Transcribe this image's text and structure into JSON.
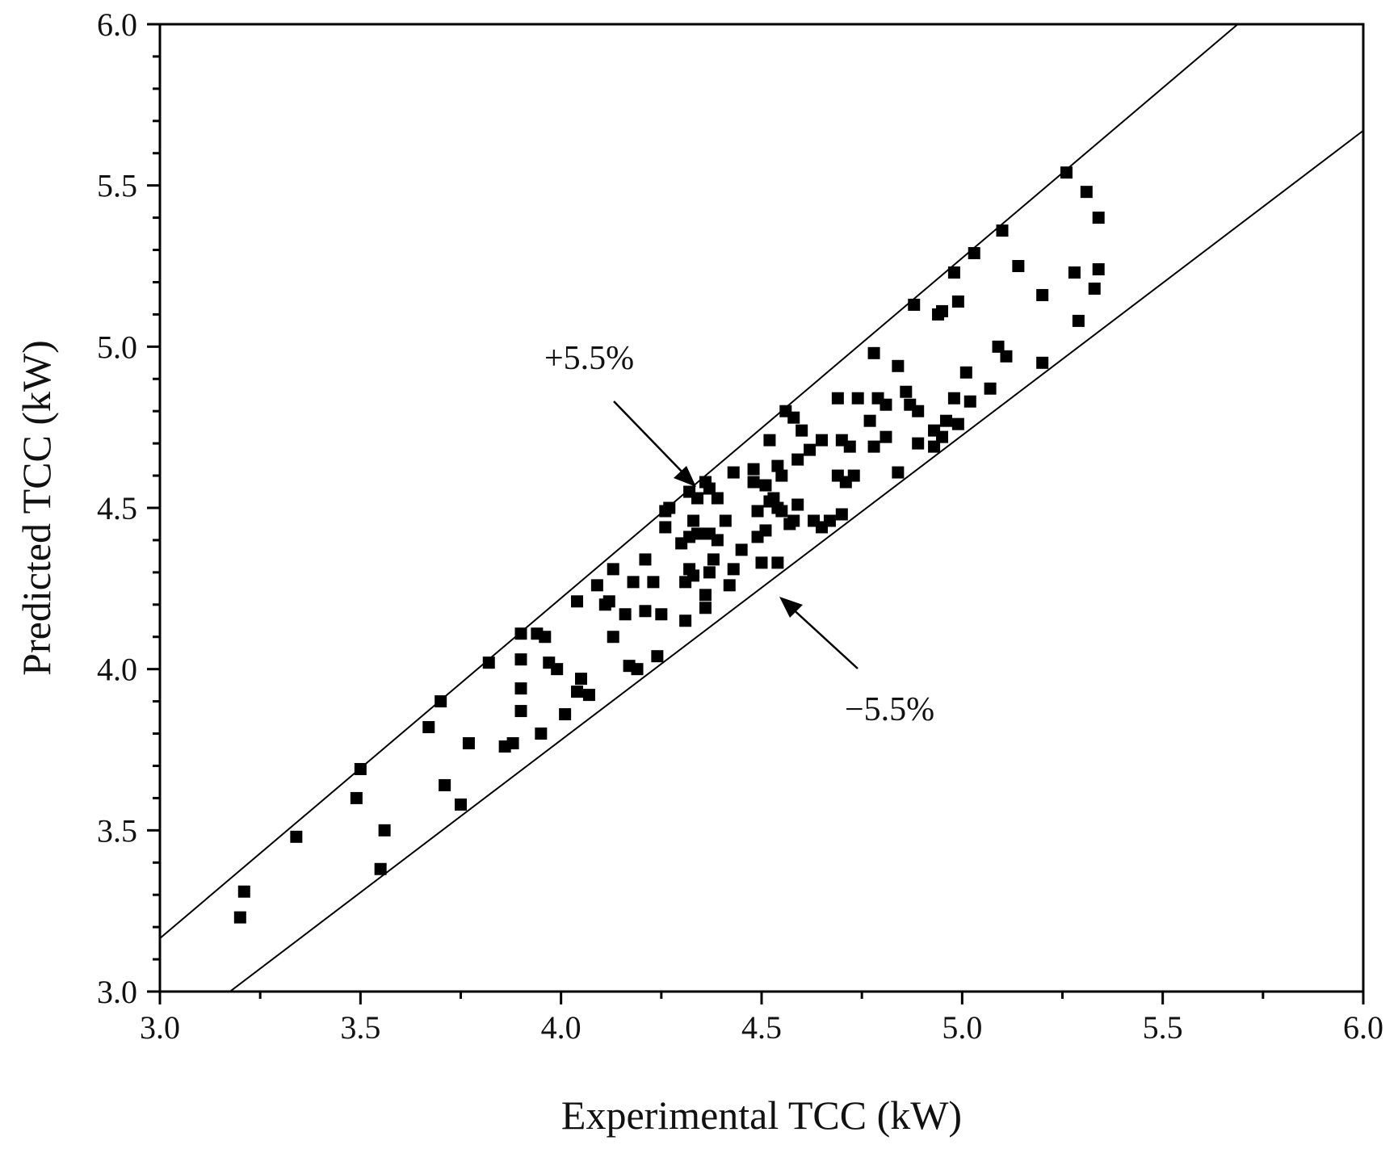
{
  "chart_data": {
    "type": "scatter",
    "title": "",
    "xlabel": "Experimental TCC (kW)",
    "ylabel": "Predicted TCC (kW)",
    "xlim": [
      3.0,
      6.0
    ],
    "ylim": [
      3.0,
      6.0
    ],
    "xticks": [
      "3.0",
      "3.5",
      "4.0",
      "4.5",
      "5.0",
      "5.5",
      "6.0"
    ],
    "yticks": [
      "3.0",
      "3.5",
      "4.0",
      "4.5",
      "5.0",
      "5.5",
      "6.0"
    ],
    "grid": false,
    "bounds": [
      {
        "name": "+5.5%",
        "factor": 1.055
      },
      {
        "name": "−5.5%",
        "factor": 0.945
      }
    ],
    "annotations": [
      {
        "text": "+5.5%",
        "points_to": [
          4.33,
          4.59
        ]
      },
      {
        "text": "−5.5%",
        "points_to": [
          4.56,
          4.25
        ]
      }
    ],
    "series": [
      {
        "name": "data",
        "marker": "square",
        "color": "#000000",
        "points": [
          [
            3.2,
            3.23
          ],
          [
            3.21,
            3.31
          ],
          [
            3.34,
            3.48
          ],
          [
            3.49,
            3.6
          ],
          [
            3.5,
            3.69
          ],
          [
            3.55,
            3.38
          ],
          [
            3.56,
            3.5
          ],
          [
            3.67,
            3.82
          ],
          [
            3.7,
            3.9
          ],
          [
            3.71,
            3.64
          ],
          [
            3.75,
            3.58
          ],
          [
            3.77,
            3.77
          ],
          [
            3.82,
            4.02
          ],
          [
            3.86,
            3.76
          ],
          [
            3.88,
            3.77
          ],
          [
            3.9,
            4.11
          ],
          [
            3.9,
            4.03
          ],
          [
            3.9,
            3.94
          ],
          [
            3.9,
            3.87
          ],
          [
            3.94,
            4.11
          ],
          [
            3.95,
            3.8
          ],
          [
            3.96,
            4.1
          ],
          [
            3.97,
            4.02
          ],
          [
            3.99,
            4.0
          ],
          [
            4.01,
            3.86
          ],
          [
            4.04,
            4.21
          ],
          [
            4.04,
            3.93
          ],
          [
            4.05,
            3.97
          ],
          [
            4.07,
            3.92
          ],
          [
            4.09,
            4.26
          ],
          [
            4.11,
            4.2
          ],
          [
            4.12,
            4.21
          ],
          [
            4.13,
            4.31
          ],
          [
            4.13,
            4.1
          ],
          [
            4.16,
            4.17
          ],
          [
            4.17,
            4.01
          ],
          [
            4.18,
            4.27
          ],
          [
            4.19,
            4.0
          ],
          [
            4.21,
            4.34
          ],
          [
            4.21,
            4.18
          ],
          [
            4.23,
            4.27
          ],
          [
            4.24,
            4.04
          ],
          [
            4.25,
            4.17
          ],
          [
            4.26,
            4.49
          ],
          [
            4.26,
            4.44
          ],
          [
            4.27,
            4.5
          ],
          [
            4.3,
            4.39
          ],
          [
            4.31,
            4.27
          ],
          [
            4.31,
            4.15
          ],
          [
            4.32,
            4.55
          ],
          [
            4.32,
            4.41
          ],
          [
            4.32,
            4.31
          ],
          [
            4.33,
            4.46
          ],
          [
            4.33,
            4.29
          ],
          [
            4.34,
            4.53
          ],
          [
            4.34,
            4.42
          ],
          [
            4.36,
            4.58
          ],
          [
            4.36,
            4.23
          ],
          [
            4.36,
            4.19
          ],
          [
            4.37,
            4.56
          ],
          [
            4.37,
            4.42
          ],
          [
            4.37,
            4.3
          ],
          [
            4.38,
            4.34
          ],
          [
            4.39,
            4.53
          ],
          [
            4.39,
            4.4
          ],
          [
            4.41,
            4.46
          ],
          [
            4.42,
            4.26
          ],
          [
            4.43,
            4.61
          ],
          [
            4.43,
            4.31
          ],
          [
            4.45,
            4.37
          ],
          [
            4.48,
            4.62
          ],
          [
            4.48,
            4.58
          ],
          [
            4.49,
            4.49
          ],
          [
            4.49,
            4.41
          ],
          [
            4.5,
            4.33
          ],
          [
            4.51,
            4.57
          ],
          [
            4.51,
            4.43
          ],
          [
            4.52,
            4.71
          ],
          [
            4.52,
            4.52
          ],
          [
            4.53,
            4.53
          ],
          [
            4.54,
            4.63
          ],
          [
            4.54,
            4.5
          ],
          [
            4.54,
            4.33
          ],
          [
            4.55,
            4.6
          ],
          [
            4.55,
            4.49
          ],
          [
            4.56,
            4.8
          ],
          [
            4.57,
            4.45
          ],
          [
            4.58,
            4.78
          ],
          [
            4.58,
            4.46
          ],
          [
            4.59,
            4.65
          ],
          [
            4.59,
            4.51
          ],
          [
            4.6,
            4.74
          ],
          [
            4.62,
            4.68
          ],
          [
            4.63,
            4.46
          ],
          [
            4.65,
            4.71
          ],
          [
            4.65,
            4.44
          ],
          [
            4.67,
            4.46
          ],
          [
            4.69,
            4.84
          ],
          [
            4.69,
            4.6
          ],
          [
            4.7,
            4.48
          ],
          [
            4.7,
            4.71
          ],
          [
            4.71,
            4.58
          ],
          [
            4.72,
            4.69
          ],
          [
            4.73,
            4.6
          ],
          [
            4.74,
            4.84
          ],
          [
            4.77,
            4.77
          ],
          [
            4.78,
            4.98
          ],
          [
            4.78,
            4.69
          ],
          [
            4.79,
            4.84
          ],
          [
            4.81,
            4.72
          ],
          [
            4.81,
            4.82
          ],
          [
            4.84,
            4.94
          ],
          [
            4.84,
            4.61
          ],
          [
            4.86,
            4.86
          ],
          [
            4.87,
            4.82
          ],
          [
            4.88,
            5.13
          ],
          [
            4.89,
            4.8
          ],
          [
            4.89,
            4.7
          ],
          [
            4.93,
            4.69
          ],
          [
            4.93,
            4.74
          ],
          [
            4.94,
            5.1
          ],
          [
            4.95,
            5.11
          ],
          [
            4.95,
            4.72
          ],
          [
            4.96,
            4.77
          ],
          [
            4.98,
            5.23
          ],
          [
            4.98,
            4.84
          ],
          [
            4.99,
            5.14
          ],
          [
            4.99,
            4.76
          ],
          [
            5.01,
            4.92
          ],
          [
            5.02,
            4.83
          ],
          [
            5.03,
            5.29
          ],
          [
            5.07,
            4.87
          ],
          [
            5.09,
            5.0
          ],
          [
            5.1,
            5.36
          ],
          [
            5.11,
            4.97
          ],
          [
            5.14,
            5.25
          ],
          [
            5.2,
            5.16
          ],
          [
            5.2,
            4.95
          ],
          [
            5.26,
            5.54
          ],
          [
            5.28,
            5.23
          ],
          [
            5.29,
            5.08
          ],
          [
            5.31,
            5.48
          ],
          [
            5.33,
            5.18
          ],
          [
            5.34,
            5.4
          ],
          [
            5.34,
            5.24
          ]
        ]
      }
    ]
  }
}
